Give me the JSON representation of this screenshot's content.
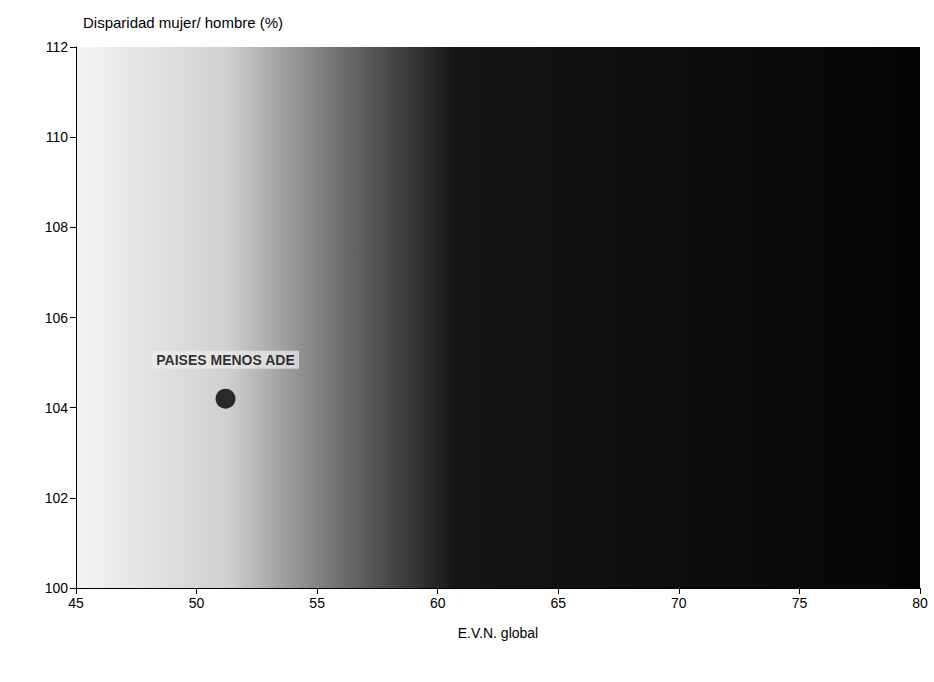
{
  "chart_data": {
    "type": "scatter",
    "y_label": "Disparidad mujer/ hombre (%)",
    "x_label": "E.V.N. global",
    "series": [
      {
        "name": "PAISES MENOS ADE",
        "x": [
          51.2
        ],
        "values": [
          104.2
        ],
        "color": "#000000",
        "marker": "circle"
      }
    ],
    "xlim": [
      45,
      80
    ],
    "xticks": [
      45,
      50,
      55,
      60,
      65,
      70,
      75,
      80
    ],
    "ylim": [
      100,
      112
    ],
    "yticks": [
      100,
      102,
      104,
      106,
      108,
      110,
      112
    ],
    "grid": false
  }
}
